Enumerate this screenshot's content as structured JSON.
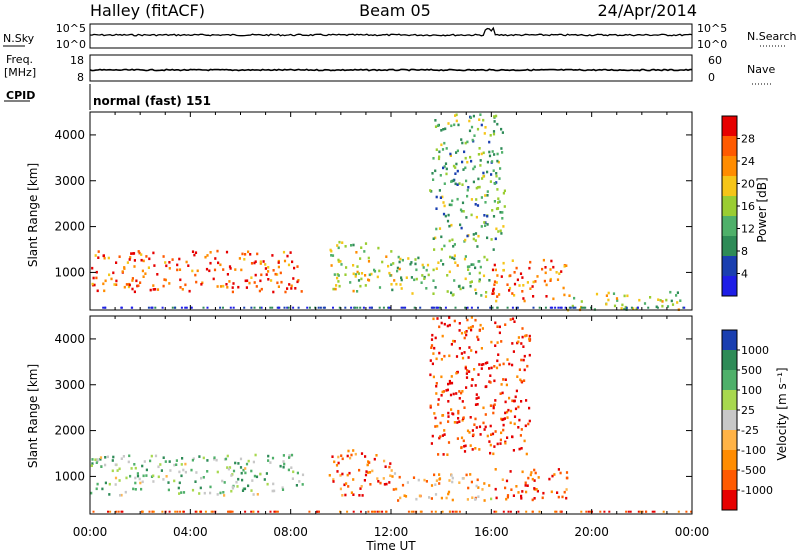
{
  "header": {
    "station": "Halley (fitACF)",
    "beam": "Beam 05",
    "date": "24/Apr/2014"
  },
  "noise_panel": {
    "left_label": "N.Sky",
    "right_label": "N.Search",
    "left_ticks": [
      "10^5",
      "10^0"
    ],
    "right_ticks": [
      "10^5",
      "10^0"
    ]
  },
  "freq_panel": {
    "label_line1": "Freq.",
    "label_line2": "[MHz]",
    "left_ticks": [
      "18",
      "8"
    ],
    "right_label": "Nave",
    "right_ticks": [
      "60",
      "0"
    ]
  },
  "cpid": {
    "label": "CPID",
    "value": "normal (fast) 151"
  },
  "time_axis": {
    "label": "Time UT",
    "ticks": [
      "00:00",
      "04:00",
      "08:00",
      "12:00",
      "16:00",
      "20:00",
      "00:00"
    ]
  },
  "colors": {
    "power_scale": [
      "#1e1ee6",
      "#1a3fb0",
      "#2e8b57",
      "#4fb06a",
      "#9acd32",
      "#f5c518",
      "#ff8c00",
      "#ff5a00",
      "#e60000"
    ],
    "velocity_scale": [
      "#e60000",
      "#ff5a00",
      "#ff8c00",
      "#ffb347",
      "#c8c8c8",
      "#a8d84f",
      "#4fb06a",
      "#2e8b57",
      "#1a3fb0"
    ]
  },
  "chart_data": [
    {
      "type": "heatmap",
      "title": "Power",
      "ylabel": "Slant Range [km]",
      "xlabel": "Time UT",
      "ylim": [
        180,
        4500
      ],
      "yticks": [
        1000,
        2000,
        3000,
        4000
      ],
      "colorbar": {
        "label": "Power [dB]",
        "ticks": [
          4,
          8,
          12,
          16,
          20,
          24,
          28
        ],
        "range": [
          0,
          32
        ]
      },
      "regions": [
        {
          "t0": 0.0,
          "t1": 8.5,
          "r0": 600,
          "r1": 1500,
          "level": 0.85
        },
        {
          "t0": 9.5,
          "t1": 12.0,
          "r0": 600,
          "r1": 1700,
          "level": 0.55
        },
        {
          "t0": 12.0,
          "t1": 16.0,
          "r0": 500,
          "r1": 1400,
          "level": 0.45
        },
        {
          "t0": 16.0,
          "t1": 19.0,
          "r0": 400,
          "r1": 1300,
          "level": 0.8
        },
        {
          "t0": 19.0,
          "t1": 23.5,
          "r0": 200,
          "r1": 600,
          "level": 0.5
        },
        {
          "t0": 13.5,
          "t1": 16.5,
          "r0": 1500,
          "r1": 4500,
          "level": 0.4
        }
      ]
    },
    {
      "type": "heatmap",
      "title": "Velocity",
      "ylabel": "Slant Range [km]",
      "xlabel": "Time UT",
      "ylim": [
        180,
        4500
      ],
      "yticks": [
        1000,
        2000,
        3000,
        4000
      ],
      "colorbar": {
        "label": "Velocity [m s⁻¹]",
        "ticks": [
          "1000",
          "500",
          "100",
          "25",
          "-25",
          "-100",
          "-500",
          "-1000"
        ]
      },
      "regions": [
        {
          "t0": 0.0,
          "t1": 8.5,
          "r0": 600,
          "r1": 1500,
          "level": 0.65
        },
        {
          "t0": 9.5,
          "t1": 12.0,
          "r0": 600,
          "r1": 1600,
          "level": 0.2
        },
        {
          "t0": 12.0,
          "t1": 16.0,
          "r0": 500,
          "r1": 1100,
          "level": 0.35
        },
        {
          "t0": 16.0,
          "t1": 19.0,
          "r0": 500,
          "r1": 1200,
          "level": 0.15
        },
        {
          "t0": 13.5,
          "t1": 17.5,
          "r0": 1500,
          "r1": 4500,
          "level": 0.1
        }
      ]
    }
  ]
}
